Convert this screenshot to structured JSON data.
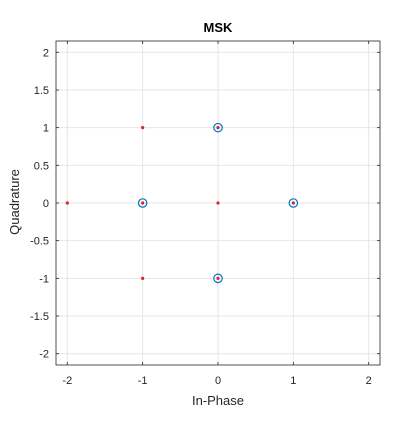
{
  "chart_data": {
    "type": "scatter",
    "title": "MSK",
    "xlabel": "In-Phase",
    "ylabel": "Quadrature",
    "xlim": [
      -2.15,
      2.15
    ],
    "ylim": [
      -2.15,
      2.15
    ],
    "xticks": [
      -2,
      -1,
      0,
      1,
      2
    ],
    "yticks": [
      -2,
      -1.5,
      -1,
      -0.5,
      0,
      0.5,
      1,
      1.5,
      2
    ],
    "xtick_labels": [
      "-2",
      "-1",
      "0",
      "1",
      "2"
    ],
    "ytick_labels": [
      "-2",
      "-1.5",
      "-1",
      "-0.5",
      "0",
      "0.5",
      "1",
      "1.5",
      "2"
    ],
    "grid": true,
    "series": [
      {
        "marker": "circle-open",
        "color": "#0072bd",
        "points": [
          {
            "x": 0,
            "y": 1
          },
          {
            "x": -1,
            "y": 0
          },
          {
            "x": 1,
            "y": 0
          },
          {
            "x": 0,
            "y": -1
          }
        ]
      },
      {
        "marker": "dot",
        "color": "#d62728",
        "points": [
          {
            "x": -1,
            "y": 1
          },
          {
            "x": 0,
            "y": 1
          },
          {
            "x": -2,
            "y": 0
          },
          {
            "x": -1,
            "y": 0
          },
          {
            "x": 0,
            "y": 0
          },
          {
            "x": 1,
            "y": 0
          },
          {
            "x": -1,
            "y": -1
          },
          {
            "x": 0,
            "y": -1
          }
        ]
      }
    ]
  }
}
